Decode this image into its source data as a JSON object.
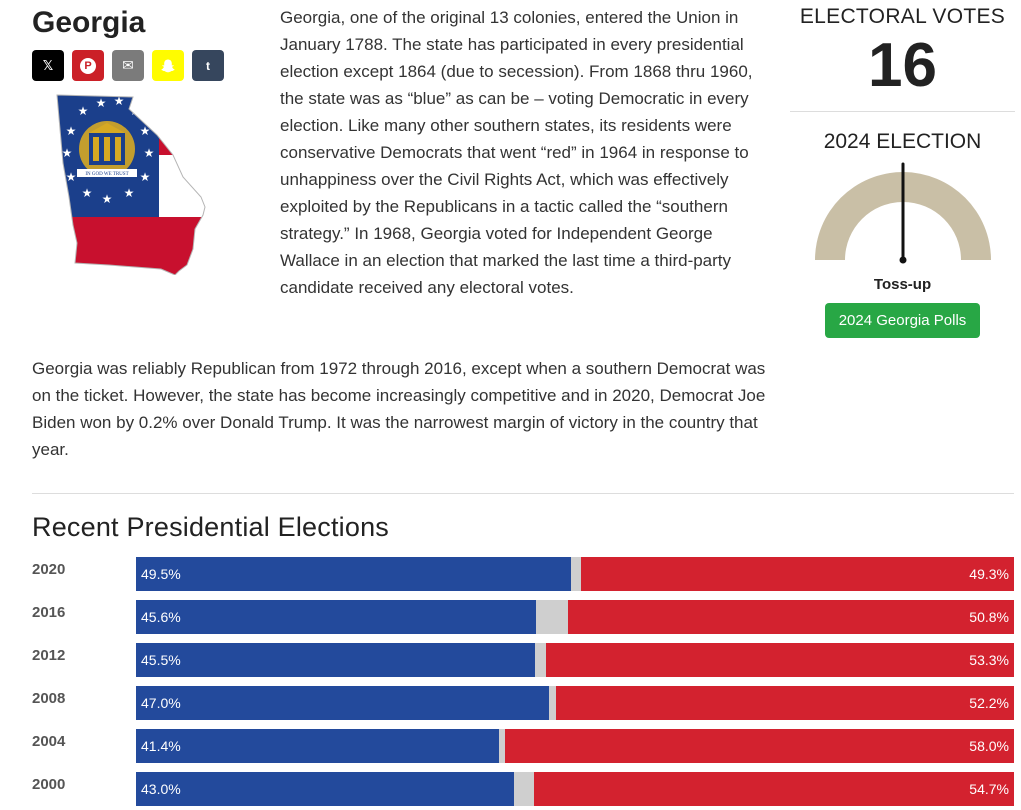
{
  "page": {
    "title": "Georgia",
    "intro": "Georgia, one of the original 13 colonies, entered the Union in January 1788. The state has participated in every presidential election except 1864 (due to secession). From 1868 thru 1960, the state was as “blue” as can be – voting Democratic in every election. Like many other southern states, its residents were conservative Democrats that went “red” in 1964 in response to unhappiness over the Civil Rights Act, which was effectively exploited by the Republicans in a tactic called the “southern strategy.” In 1968, Georgia voted for Independent George Wallace in an election that marked the last time a third-party candidate received any electoral votes.",
    "paragraph2": "Georgia was reliably Republican from 1972 through 2016, except when a southern Democrat was on the ticket. However, the state has become increasingly competitive and in 2020, Democrat Joe Biden won by 0.2% over Donald Trump. It was the narrowest margin of victory in the country that year."
  },
  "share": [
    {
      "name": "x",
      "glyph": "𝕏",
      "icon": "x-icon"
    },
    {
      "name": "pinterest",
      "glyph": "P",
      "icon": "pinterest-icon"
    },
    {
      "name": "email",
      "glyph": "✉",
      "icon": "email-icon"
    },
    {
      "name": "snapchat",
      "glyph": "",
      "icon": "snapchat-icon"
    },
    {
      "name": "tumblr",
      "glyph": "t",
      "icon": "tumblr-icon"
    }
  ],
  "map": {
    "seal_text": "IN GOD WE TRUST",
    "colors": {
      "blue": "#1b3f8b",
      "red": "#c8102e",
      "gold": "#d6a923"
    }
  },
  "sidebar": {
    "ev_label": "ELECTORAL VOTES",
    "ev_count": "16",
    "election_label": "2024 ELECTION",
    "gauge_status": "Toss-up",
    "gauge_value": 0.5,
    "polls_button": "2024 Georgia Polls"
  },
  "section": {
    "title": "Recent Presidential Elections"
  },
  "elections": [
    {
      "year": "2020",
      "dem": 49.5,
      "rep": 49.3,
      "dem_label": "49.5%",
      "rep_label": "49.3%"
    },
    {
      "year": "2016",
      "dem": 45.6,
      "rep": 50.8,
      "dem_label": "45.6%",
      "rep_label": "50.8%"
    },
    {
      "year": "2012",
      "dem": 45.5,
      "rep": 53.3,
      "dem_label": "45.5%",
      "rep_label": "53.3%"
    },
    {
      "year": "2008",
      "dem": 47.0,
      "rep": 52.2,
      "dem_label": "47.0%",
      "rep_label": "52.2%"
    },
    {
      "year": "2004",
      "dem": 41.4,
      "rep": 58.0,
      "dem_label": "41.4%",
      "rep_label": "58.0%"
    },
    {
      "year": "2000",
      "dem": 43.0,
      "rep": 54.7,
      "dem_label": "43.0%",
      "rep_label": "54.7%"
    }
  ],
  "colors": {
    "dem": "#234a9c",
    "rep": "#d3222f",
    "other": "#cfcfcf",
    "gauge": "#c9bfa6",
    "button": "#28a745"
  }
}
